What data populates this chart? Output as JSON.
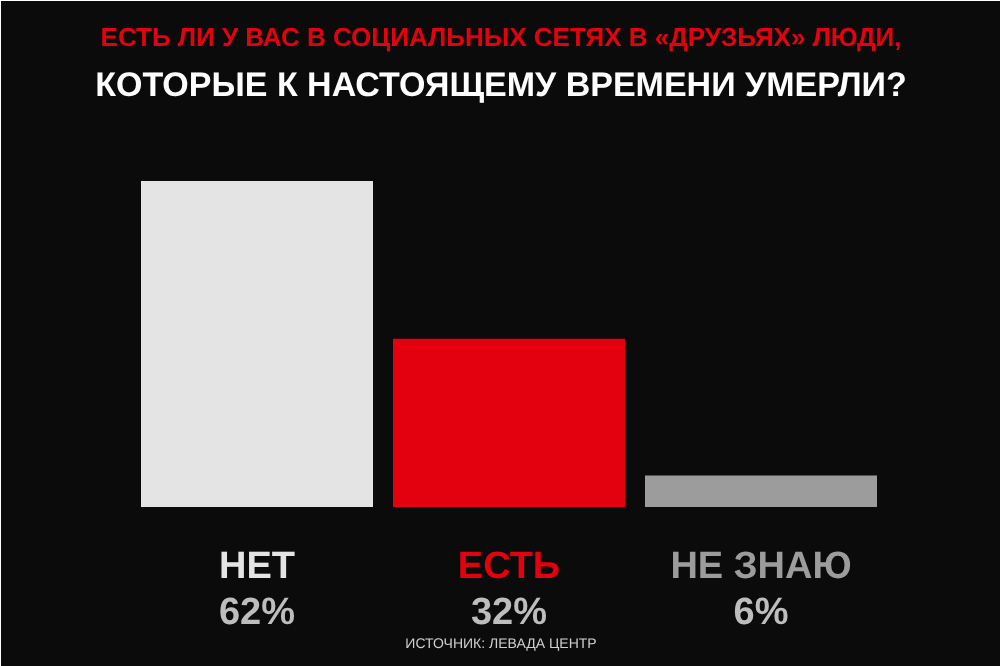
{
  "chart_data": {
    "type": "bar",
    "title": "ЕСТЬ ЛИ У ВАС В СОЦИАЛЬНЫХ СЕТЯХ В «ДРУЗЬЯХ» ЛЮДИ,",
    "subtitle": "КОТОРЫЕ К НАСТОЯЩЕМУ ВРЕМЕНИ УМЕРЛИ?",
    "categories": [
      "НЕТ",
      "ЕСТЬ",
      "НЕ ЗНАЮ"
    ],
    "values": [
      62,
      32,
      6
    ],
    "colors": [
      "#e4e4e4",
      "#e3000f",
      "#9c9c9c"
    ],
    "value_labels": [
      "62%",
      "32%",
      "6%"
    ],
    "annotations": [
      "ИСТОЧНИК: ЛЕВАДА ЦЕНТР"
    ]
  }
}
